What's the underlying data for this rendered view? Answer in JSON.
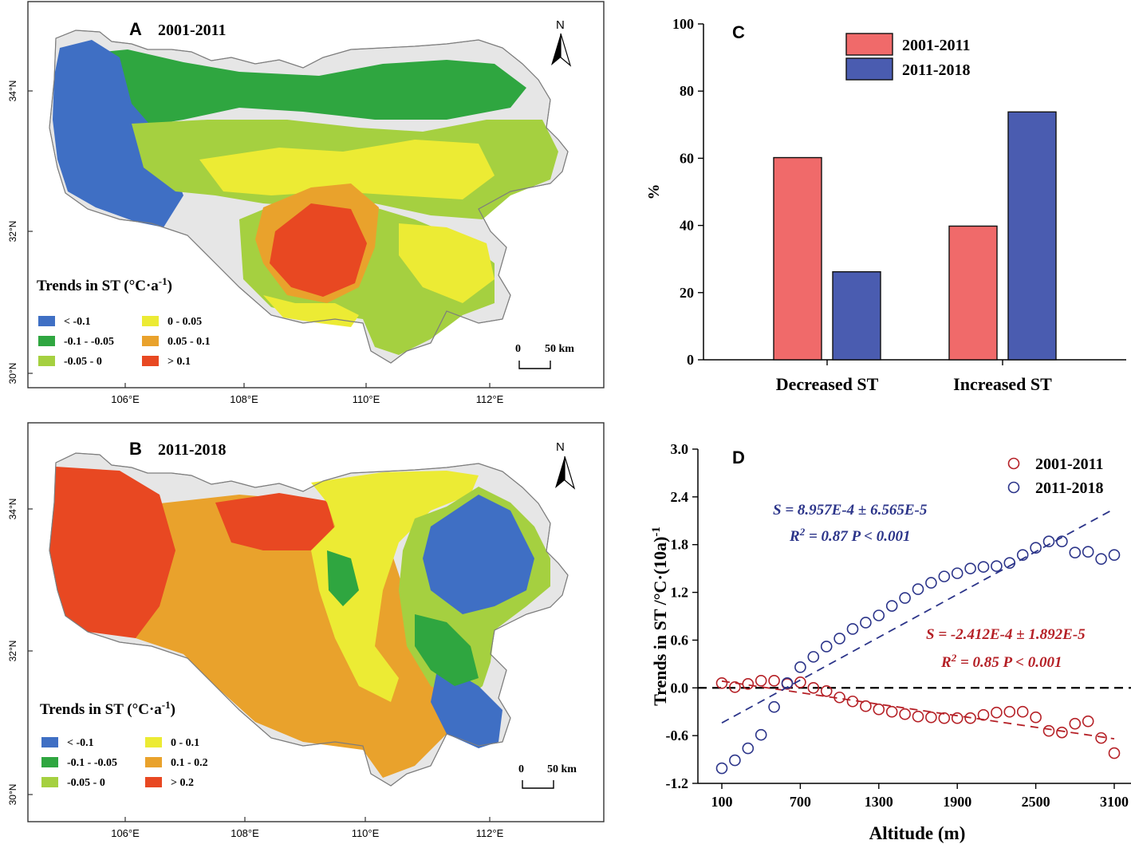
{
  "colors": {
    "blue": "#3f6fc4",
    "dkgreen": "#2fa640",
    "ltgreen": "#a5d040",
    "yellow": "#eceb34",
    "orange": "#e9a22c",
    "red": "#e84822",
    "gray": "#e6e6e6",
    "bar_red": "#f06a6a",
    "bar_blue": "#4a5cb0",
    "sc_red": "#b52026",
    "sc_blue": "#2b3489"
  },
  "map_a": {
    "label": "A",
    "title": "2001-2011",
    "north": "N",
    "legend_title": "Trends in ST (°C·a",
    "legend_sup": "-1",
    "legend_close": ")",
    "legend_items": [
      {
        "label": "< -0.1",
        "color": "#3f6fc4"
      },
      {
        "label": "-0.1 - -0.05",
        "color": "#2fa640"
      },
      {
        "label": "-0.05 - 0",
        "color": "#a5d040"
      },
      {
        "label": "0 - 0.05",
        "color": "#eceb34"
      },
      {
        "label": "0.05 - 0.1",
        "color": "#e9a22c"
      },
      {
        "label": "> 0.1",
        "color": "#e84822"
      }
    ],
    "scale_zero": "0",
    "scale_label": "50 km",
    "lat_ticks": [
      "34°N",
      "32°N",
      "30°N"
    ],
    "lon_ticks": [
      "106°E",
      "108°E",
      "110°E",
      "112°E"
    ]
  },
  "map_b": {
    "label": "B",
    "title": "2011-2018",
    "north": "N",
    "legend_title": "Trends in ST (°C·a",
    "legend_sup": "-1",
    "legend_close": ")",
    "legend_items": [
      {
        "label": "< -0.1",
        "color": "#3f6fc4"
      },
      {
        "label": "-0.1 - -0.05",
        "color": "#2fa640"
      },
      {
        "label": "-0.05 - 0",
        "color": "#a5d040"
      },
      {
        "label": "0 - 0.1",
        "color": "#eceb34"
      },
      {
        "label": "0.1 - 0.2",
        "color": "#e9a22c"
      },
      {
        "label": "> 0.2",
        "color": "#e84822"
      }
    ],
    "scale_zero": "0",
    "scale_label": "50 km",
    "lat_ticks": [
      "34°N",
      "32°N",
      "30°N"
    ],
    "lon_ticks": [
      "106°E",
      "108°E",
      "110°E",
      "112°E"
    ]
  },
  "chart_data": [
    {
      "panel": "C",
      "type": "bar",
      "categories": [
        "Decreased ST",
        "Increased ST"
      ],
      "series": [
        {
          "name": "2001-2011",
          "values": [
            60.2,
            39.8
          ]
        },
        {
          "name": "2011-2018",
          "values": [
            26.2,
            73.8
          ]
        }
      ],
      "ylabel": "%",
      "ylim": [
        0,
        100
      ],
      "yticks": [
        0,
        20,
        40,
        60,
        80,
        100
      ],
      "legend": "top-left"
    },
    {
      "panel": "D",
      "type": "scatter",
      "xlabel": "Altitude (m)",
      "ylabel": "Trends in ST /°C·(10a)",
      "ylabel_sup": "-1",
      "xlim": [
        0,
        3200
      ],
      "ylim": [
        -1.2,
        3.0
      ],
      "xticks": [
        100,
        700,
        1300,
        1900,
        2500,
        3100
      ],
      "yticks": [
        -1.2,
        -0.6,
        0.0,
        0.6,
        1.2,
        1.8,
        2.4,
        3.0
      ],
      "legend": "top-right",
      "series": [
        {
          "name": "2001-2011",
          "x": [
            100,
            200,
            300,
            400,
            500,
            600,
            700,
            800,
            900,
            1000,
            1100,
            1200,
            1300,
            1400,
            1500,
            1600,
            1700,
            1800,
            1900,
            2000,
            2100,
            2200,
            2300,
            2400,
            2500,
            2600,
            2700,
            2800,
            2900,
            3000,
            3100
          ],
          "y": [
            0.06,
            0.01,
            0.05,
            0.09,
            0.09,
            0.05,
            0.07,
            0.0,
            -0.04,
            -0.12,
            -0.17,
            -0.23,
            -0.27,
            -0.3,
            -0.33,
            -0.36,
            -0.37,
            -0.38,
            -0.38,
            -0.38,
            -0.34,
            -0.31,
            -0.3,
            -0.3,
            -0.37,
            -0.54,
            -0.56,
            -0.45,
            -0.42,
            -0.63,
            -0.82
          ],
          "fit": {
            "x": [
              100,
              3100
            ],
            "y": [
              0.085,
              -0.64
            ]
          },
          "eq_s": "S = -2.412E-4 ± 1.892E-5",
          "eq_r": "R",
          "eq_r_sup": "2",
          "eq_r_rest": " = 0.85  P < 0.001"
        },
        {
          "name": "2011-2018",
          "x": [
            100,
            200,
            300,
            400,
            500,
            600,
            700,
            800,
            900,
            1000,
            1100,
            1200,
            1300,
            1400,
            1500,
            1600,
            1700,
            1800,
            1900,
            2000,
            2100,
            2200,
            2300,
            2400,
            2500,
            2600,
            2700,
            2800,
            2900,
            3000,
            3100
          ],
          "y": [
            -1.01,
            -0.91,
            -0.76,
            -0.59,
            -0.24,
            0.06,
            0.26,
            0.39,
            0.52,
            0.62,
            0.74,
            0.82,
            0.91,
            1.03,
            1.13,
            1.24,
            1.32,
            1.4,
            1.44,
            1.5,
            1.52,
            1.53,
            1.57,
            1.67,
            1.76,
            1.84,
            1.84,
            1.7,
            1.71,
            1.62,
            1.67
          ],
          "fit": {
            "x": [
              100,
              3100
            ],
            "y": [
              -0.44,
              2.25
            ]
          },
          "eq_s": "S = 8.957E-4 ± 6.565E-5",
          "eq_r": "R",
          "eq_r_sup": "2",
          "eq_r_rest": " = 0.87  P < 0.001"
        }
      ],
      "zero_line": 0.0
    }
  ]
}
